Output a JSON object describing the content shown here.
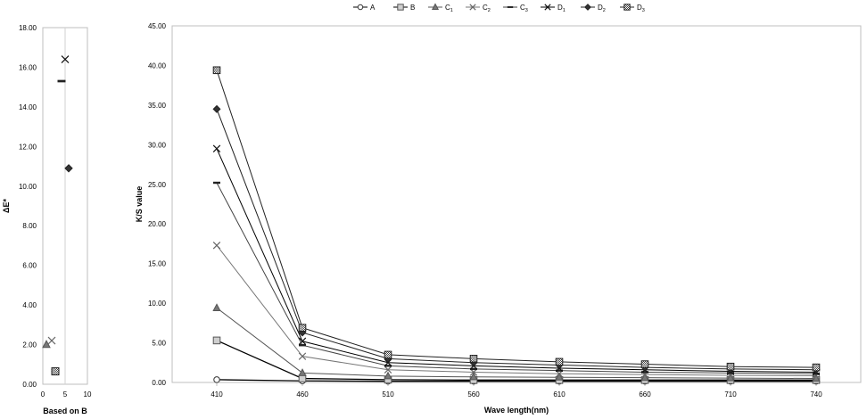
{
  "legend": {
    "items": [
      {
        "label": "A",
        "sub": "",
        "marker": "circle"
      },
      {
        "label": "B",
        "sub": "",
        "marker": "square"
      },
      {
        "label": "C",
        "sub": "1",
        "marker": "triangle"
      },
      {
        "label": "C",
        "sub": "2",
        "marker": "x"
      },
      {
        "label": "C",
        "sub": "3",
        "marker": "dash"
      },
      {
        "label": "D",
        "sub": "1",
        "marker": "x"
      },
      {
        "label": "D",
        "sub": "2",
        "marker": "diamond"
      },
      {
        "label": "D",
        "sub": "3",
        "marker": "checker"
      }
    ]
  },
  "chart_data": [
    {
      "type": "scatter",
      "title": "",
      "xlabel": "Based on B",
      "ylabel": "ΔE*",
      "xlim": [
        0,
        10
      ],
      "ylim": [
        0,
        18
      ],
      "x_ticks": [
        "0",
        "5",
        "10"
      ],
      "y_ticks": [
        "0.00",
        "2.00",
        "4.00",
        "6.00",
        "8.00",
        "10.00",
        "12.00",
        "14.00",
        "16.00",
        "18.00"
      ],
      "grid": "vertical line at x=5",
      "points": [
        {
          "series": "C1",
          "marker": "triangle",
          "x": 0.8,
          "y": 2.0
        },
        {
          "series": "C2",
          "marker": "x",
          "x": 2.0,
          "y": 2.2
        },
        {
          "series": "C3",
          "marker": "dash",
          "x": 4.2,
          "y": 15.3
        },
        {
          "series": "D1",
          "marker": "x",
          "x": 5.0,
          "y": 16.4
        },
        {
          "series": "D2",
          "marker": "diamond",
          "x": 5.8,
          "y": 10.9
        },
        {
          "series": "D3",
          "marker": "checker",
          "x": 2.8,
          "y": 0.65
        }
      ]
    },
    {
      "type": "line",
      "title": "",
      "xlabel": "Wave length(nm)",
      "ylabel": "K/S value",
      "ylim": [
        0,
        45
      ],
      "categories": [
        "410",
        "460",
        "510",
        "560",
        "610",
        "660",
        "710",
        "740"
      ],
      "y_ticks": [
        "0.00",
        "5.00",
        "10.00",
        "15.00",
        "20.00",
        "25.00",
        "30.00",
        "35.00",
        "40.00",
        "45.00"
      ],
      "series": [
        {
          "name": "A",
          "marker": "circle",
          "values": [
            0.35,
            0.2,
            0.15,
            0.15,
            0.15,
            0.15,
            0.15,
            0.15
          ]
        },
        {
          "name": "B",
          "marker": "square",
          "values": [
            5.3,
            0.5,
            0.35,
            0.3,
            0.3,
            0.3,
            0.3,
            0.3
          ]
        },
        {
          "name": "C1",
          "marker": "triangle",
          "values": [
            9.4,
            1.2,
            0.8,
            0.7,
            0.65,
            0.6,
            0.55,
            0.5
          ]
        },
        {
          "name": "C2",
          "marker": "x",
          "values": [
            17.3,
            3.3,
            1.6,
            1.3,
            1.1,
            1.0,
            0.9,
            0.85
          ]
        },
        {
          "name": "C3",
          "marker": "dash",
          "values": [
            25.2,
            4.7,
            2.1,
            1.7,
            1.5,
            1.3,
            1.2,
            1.1
          ]
        },
        {
          "name": "D1",
          "marker": "x",
          "values": [
            29.5,
            5.2,
            2.5,
            2.1,
            1.8,
            1.6,
            1.4,
            1.3
          ]
        },
        {
          "name": "D2",
          "marker": "diamond",
          "values": [
            34.5,
            6.3,
            3.0,
            2.5,
            2.2,
            1.9,
            1.7,
            1.6
          ]
        },
        {
          "name": "D3",
          "marker": "checker",
          "values": [
            39.4,
            6.9,
            3.5,
            3.0,
            2.6,
            2.3,
            2.0,
            1.9
          ]
        }
      ]
    }
  ]
}
